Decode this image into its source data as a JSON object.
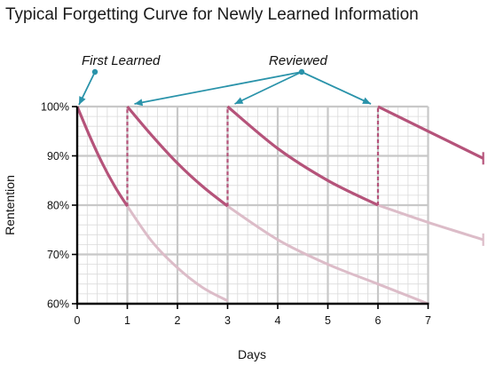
{
  "chart_data": {
    "type": "line",
    "title": "Typical Forgetting Curve for Newly Learned Information",
    "xlabel": "Days",
    "ylabel": "Rentention",
    "xlim": [
      0,
      8.1
    ],
    "ylim": [
      60,
      100
    ],
    "x_ticks": [
      "0",
      "1",
      "2",
      "3",
      "4",
      "5",
      "6",
      "7"
    ],
    "y_ticks": [
      "60%",
      "70%",
      "80%",
      "90%",
      "100%"
    ],
    "grid": true,
    "annotations": [
      {
        "text": "First Learned",
        "points_to": [
          0,
          100
        ]
      },
      {
        "text": "Reviewed",
        "points_to": [
          [
            1,
            100
          ],
          [
            3,
            100
          ],
          [
            6,
            100
          ]
        ]
      }
    ],
    "colors": {
      "curve": "#b5537a",
      "faded": "#dcbcc8",
      "arrow": "#2a93aa",
      "grid": "#c8c8c8"
    },
    "series": [
      {
        "values": [
          [
            0,
            100
          ],
          [
            0.25,
            94
          ],
          [
            0.5,
            88.5
          ],
          [
            0.75,
            83.8
          ],
          [
            1,
            79.8
          ]
        ],
        "style": "active"
      },
      {
        "values": [
          [
            1,
            79.8
          ],
          [
            1.5,
            72.5
          ],
          [
            2,
            67.3
          ],
          [
            2.5,
            63.3
          ],
          [
            3,
            60.6
          ]
        ],
        "style": "faded"
      },
      {
        "values": [
          [
            1,
            100
          ],
          [
            1.5,
            94
          ],
          [
            2,
            88.5
          ],
          [
            2.5,
            83.8
          ],
          [
            3,
            79.8
          ]
        ],
        "style": "active"
      },
      {
        "values": [
          [
            3,
            79.8
          ],
          [
            4,
            73
          ],
          [
            5,
            68
          ],
          [
            6,
            64
          ],
          [
            7,
            60
          ]
        ],
        "style": "faded"
      },
      {
        "values": [
          [
            3,
            100
          ],
          [
            4,
            91.5
          ],
          [
            5,
            85
          ],
          [
            6,
            80
          ]
        ],
        "style": "active"
      },
      {
        "values": [
          [
            6,
            80
          ],
          [
            7,
            76.5
          ],
          [
            8.1,
            73
          ]
        ],
        "style": "faded"
      },
      {
        "values": [
          [
            6,
            100
          ],
          [
            7,
            95
          ],
          [
            8.1,
            89.5
          ]
        ],
        "style": "active"
      }
    ],
    "review_lines": [
      {
        "x": 1,
        "from": 79.8,
        "to": 100
      },
      {
        "x": 3,
        "from": 79.8,
        "to": 100
      },
      {
        "x": 6,
        "from": 80,
        "to": 100
      }
    ]
  }
}
